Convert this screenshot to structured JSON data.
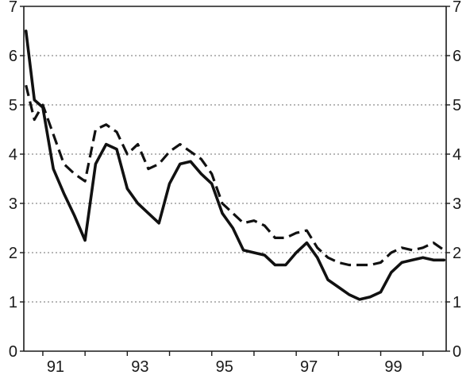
{
  "chart_data": {
    "type": "line",
    "title": "",
    "xlabel": "",
    "ylabel": "",
    "ylim": [
      0,
      7
    ],
    "xlim": [
      1990.55,
      2000.55
    ],
    "y_ticks": [
      "0",
      "1",
      "2",
      "3",
      "4",
      "5",
      "6",
      "7"
    ],
    "y_ticks_right": [
      "0",
      "1",
      "2",
      "3",
      "4",
      "5",
      "6",
      "7"
    ],
    "x_tick_labels": [
      {
        "label": "91",
        "x": 1991.0
      },
      {
        "label": "93",
        "x": 1993.0
      },
      {
        "label": "95",
        "x": 1995.0
      },
      {
        "label": "97",
        "x": 1997.0
      },
      {
        "label": "99",
        "x": 1999.0
      }
    ],
    "grid": true,
    "legend": "none",
    "series": [
      {
        "style": "solid",
        "x": [
          1990.6,
          1990.8,
          1991.0,
          1991.25,
          1991.5,
          1991.75,
          1992.0,
          1992.25,
          1992.5,
          1992.75,
          1993.0,
          1993.25,
          1993.5,
          1993.75,
          1994.0,
          1994.25,
          1994.5,
          1994.75,
          1995.0,
          1995.25,
          1995.5,
          1995.75,
          1996.0,
          1996.25,
          1996.5,
          1996.75,
          1997.0,
          1997.25,
          1997.5,
          1997.75,
          1998.0,
          1998.25,
          1998.5,
          1998.75,
          1999.0,
          1999.25,
          1999.5,
          1999.75,
          2000.0,
          2000.25,
          2000.5
        ],
        "values": [
          6.5,
          5.1,
          4.95,
          3.7,
          3.2,
          2.75,
          2.25,
          3.8,
          4.2,
          4.1,
          3.3,
          3.0,
          2.8,
          2.6,
          3.4,
          3.8,
          3.85,
          3.6,
          3.4,
          2.8,
          2.5,
          2.05,
          2.0,
          1.95,
          1.75,
          1.75,
          2.0,
          2.2,
          1.9,
          1.45,
          1.3,
          1.15,
          1.05,
          1.1,
          1.2,
          1.6,
          1.8,
          1.85,
          1.9,
          1.85,
          1.85
        ]
      },
      {
        "style": "dashed",
        "x": [
          1990.6,
          1990.8,
          1991.0,
          1991.25,
          1991.5,
          1991.75,
          1992.0,
          1992.25,
          1992.5,
          1992.75,
          1993.0,
          1993.25,
          1993.5,
          1993.75,
          1994.0,
          1994.25,
          1994.5,
          1994.75,
          1995.0,
          1995.25,
          1995.5,
          1995.75,
          1996.0,
          1996.25,
          1996.5,
          1996.75,
          1997.0,
          1997.25,
          1997.5,
          1997.75,
          1998.0,
          1998.25,
          1998.5,
          1998.75,
          1999.0,
          1999.25,
          1999.5,
          1999.75,
          2000.0,
          2000.25,
          2000.5
        ],
        "values": [
          5.4,
          4.7,
          5.0,
          4.4,
          3.8,
          3.6,
          3.45,
          4.5,
          4.6,
          4.45,
          4.0,
          4.2,
          3.7,
          3.8,
          4.05,
          4.2,
          4.05,
          3.9,
          3.6,
          3.0,
          2.8,
          2.6,
          2.65,
          2.55,
          2.3,
          2.3,
          2.4,
          2.45,
          2.1,
          1.9,
          1.8,
          1.75,
          1.75,
          1.75,
          1.8,
          2.0,
          2.1,
          2.05,
          2.1,
          2.2,
          2.05
        ]
      }
    ]
  }
}
